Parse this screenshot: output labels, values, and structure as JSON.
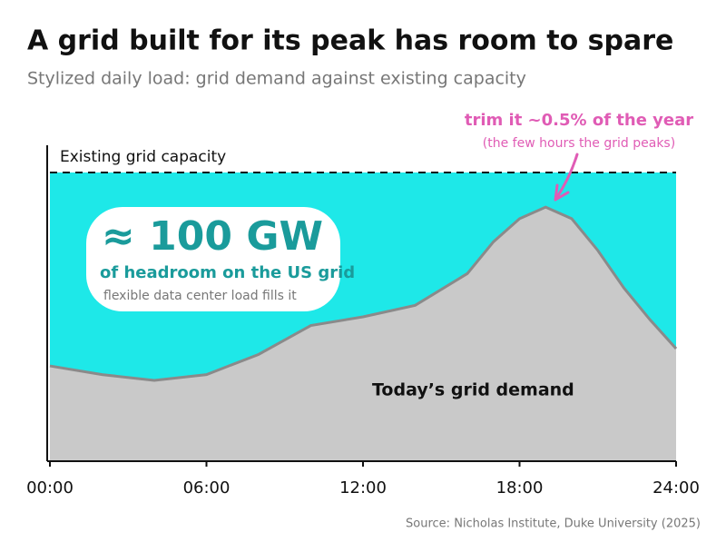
{
  "chart_data": {
    "type": "area",
    "title": "A grid built for its peak has room to spare",
    "subtitle": "Stylized daily load: grid demand against existing capacity",
    "x": [
      0,
      2,
      4,
      6,
      8,
      10,
      12,
      14,
      16,
      17,
      18,
      19,
      20,
      21,
      22,
      23,
      24
    ],
    "series": [
      {
        "name": "Today’s grid demand",
        "color": "#c9c9c9",
        "line_color": "#8a8a8a",
        "values": [
          33,
          30,
          28,
          30,
          37,
          47,
          50,
          54,
          65,
          76,
          84,
          88,
          84,
          73,
          60,
          49,
          39
        ]
      }
    ],
    "capacity": {
      "label": "Existing grid capacity",
      "value": 100,
      "fill": "#1ee8e8"
    },
    "xlim": [
      0,
      24
    ],
    "xticks": [
      {
        "value": 0,
        "label": "00:00"
      },
      {
        "value": 6,
        "label": "06:00"
      },
      {
        "value": 12,
        "label": "12:00"
      },
      {
        "value": 18,
        "label": "18:00"
      },
      {
        "value": 24,
        "label": "24:00"
      }
    ],
    "ylim": [
      0,
      100
    ],
    "headroom": {
      "value_text": "≈ 100 GW",
      "line1": "of headroom on the US grid",
      "line2": "flexible data center load fills it"
    },
    "annotation": {
      "text": "trim it ~0.5% of the year",
      "subtext": "(the few hours the grid peaks)",
      "color": "#e05cb5"
    },
    "source": "Source: Nicholas Institute, Duke University (2025)"
  }
}
